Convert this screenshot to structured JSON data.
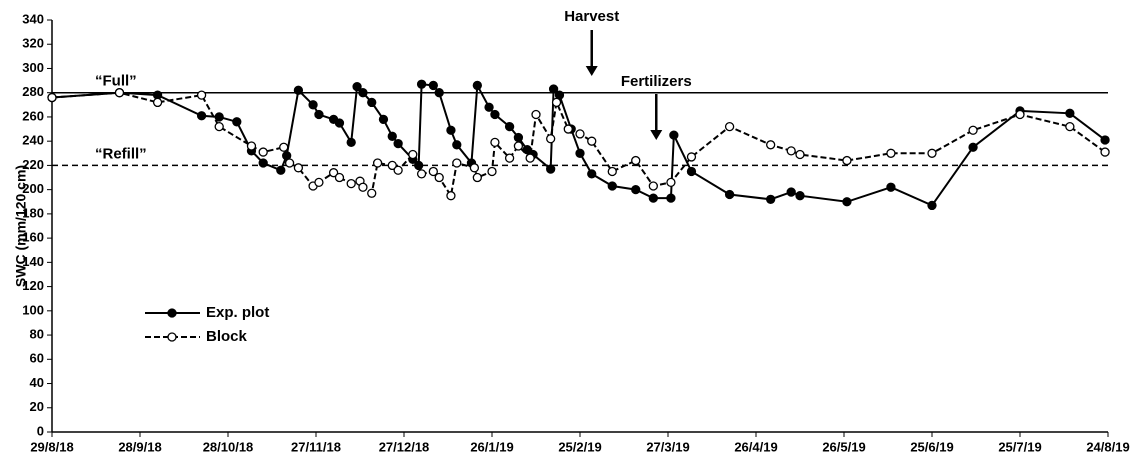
{
  "chart_data": {
    "type": "line",
    "y_label": "SWC (mm/120 cm)",
    "xlim": [
      "2018-08-29",
      "2019-08-24"
    ],
    "xticks": [
      {
        "value": "2018-08-29",
        "label": "29/8/18"
      },
      {
        "value": "2018-09-28",
        "label": "28/9/18"
      },
      {
        "value": "2018-10-28",
        "label": "28/10/18"
      },
      {
        "value": "2018-11-27",
        "label": "27/11/18"
      },
      {
        "value": "2018-12-27",
        "label": "27/12/18"
      },
      {
        "value": "2019-01-26",
        "label": "26/1/19"
      },
      {
        "value": "2019-02-25",
        "label": "25/2/19"
      },
      {
        "value": "2019-03-27",
        "label": "27/3/19"
      },
      {
        "value": "2019-04-26",
        "label": "26/4/19"
      },
      {
        "value": "2019-05-26",
        "label": "26/5/19"
      },
      {
        "value": "2019-06-25",
        "label": "25/6/19"
      },
      {
        "value": "2019-07-25",
        "label": "25/7/19"
      },
      {
        "value": "2019-08-24",
        "label": "24/8/19"
      }
    ],
    "ylim": [
      0,
      340
    ],
    "yticks": [
      0,
      20,
      40,
      60,
      80,
      100,
      120,
      140,
      160,
      180,
      200,
      220,
      240,
      260,
      280,
      300,
      320,
      340
    ],
    "grid": false,
    "legend": "lower left",
    "reference_lines": [
      {
        "value": 280,
        "label": "“Full”",
        "style": "solid"
      },
      {
        "value": 220,
        "label": "“Refill”",
        "style": "dashed"
      }
    ],
    "annotations": [
      {
        "text": "Harvest",
        "x": "2019-03-01"
      },
      {
        "text": "Fertilizers",
        "x": "2019-03-23"
      }
    ],
    "series": [
      {
        "name": "Exp. plot",
        "color": "#000000",
        "style": "solid",
        "marker": "filled",
        "x": [
          "2018-08-29",
          "2018-09-21",
          "2018-10-04",
          "2018-10-19",
          "2018-10-25",
          "2018-10-31",
          "2018-11-05",
          "2018-11-09",
          "2018-11-15",
          "2018-11-17",
          "2018-11-21",
          "2018-11-26",
          "2018-11-28",
          "2018-12-03",
          "2018-12-05",
          "2018-12-09",
          "2018-12-11",
          "2018-12-13",
          "2018-12-16",
          "2018-12-20",
          "2018-12-23",
          "2018-12-25",
          "2018-12-30",
          "2019-01-01",
          "2019-01-02",
          "2019-01-06",
          "2019-01-08",
          "2019-01-12",
          "2019-01-14",
          "2019-01-19",
          "2019-01-21",
          "2019-01-25",
          "2019-01-27",
          "2019-02-01",
          "2019-02-04",
          "2019-02-07",
          "2019-02-09",
          "2019-02-15",
          "2019-02-16",
          "2019-02-18",
          "2019-02-22",
          "2019-02-25",
          "2019-03-01",
          "2019-03-08",
          "2019-03-16",
          "2019-03-22",
          "2019-03-28",
          "2019-03-29",
          "2019-04-04",
          "2019-04-17",
          "2019-05-01",
          "2019-05-08",
          "2019-05-11",
          "2019-05-27",
          "2019-06-11",
          "2019-06-25",
          "2019-07-09",
          "2019-07-25",
          "2019-08-11",
          "2019-08-23"
        ],
        "values": [
          276,
          280,
          278,
          261,
          260,
          256,
          232,
          222,
          216,
          228,
          282,
          270,
          262,
          258,
          255,
          239,
          285,
          280,
          272,
          258,
          244,
          238,
          225,
          220,
          287,
          286,
          280,
          249,
          237,
          222,
          286,
          268,
          262,
          252,
          243,
          233,
          229,
          217,
          283,
          278,
          250,
          230,
          213,
          203,
          200,
          193,
          193,
          245,
          215,
          196,
          192,
          198,
          195,
          190,
          202,
          187,
          235,
          265,
          263,
          241
        ]
      },
      {
        "name": "Block",
        "color": "#000000",
        "style": "dashed",
        "marker": "open",
        "x": [
          "2018-08-29",
          "2018-09-21",
          "2018-10-04",
          "2018-10-19",
          "2018-10-25",
          "2018-11-05",
          "2018-11-09",
          "2018-11-16",
          "2018-11-18",
          "2018-11-21",
          "2018-11-26",
          "2018-11-28",
          "2018-12-03",
          "2018-12-05",
          "2018-12-09",
          "2018-12-12",
          "2018-12-13",
          "2018-12-16",
          "2018-12-18",
          "2018-12-23",
          "2018-12-25",
          "2018-12-30",
          "2019-01-02",
          "2019-01-06",
          "2019-01-08",
          "2019-01-12",
          "2019-01-14",
          "2019-01-20",
          "2019-01-21",
          "2019-01-26",
          "2019-01-27",
          "2019-02-01",
          "2019-02-04",
          "2019-02-08",
          "2019-02-10",
          "2019-02-15",
          "2019-02-17",
          "2019-02-21",
          "2019-02-25",
          "2019-03-01",
          "2019-03-08",
          "2019-03-16",
          "2019-03-22",
          "2019-03-28",
          "2019-04-04",
          "2019-04-17",
          "2019-05-01",
          "2019-05-08",
          "2019-05-11",
          "2019-05-27",
          "2019-06-11",
          "2019-06-25",
          "2019-07-09",
          "2019-07-25",
          "2019-08-11",
          "2019-08-23"
        ],
        "values": [
          276,
          280,
          272,
          278,
          252,
          236,
          231,
          235,
          222,
          218,
          203,
          206,
          214,
          210,
          205,
          207,
          202,
          197,
          222,
          220,
          216,
          229,
          213,
          215,
          210,
          195,
          222,
          218,
          210,
          215,
          239,
          226,
          236,
          226,
          262,
          242,
          272,
          250,
          246,
          240,
          215,
          224,
          203,
          206,
          227,
          252,
          237,
          232,
          229,
          224,
          230,
          230,
          249,
          262,
          252,
          231
        ]
      }
    ]
  }
}
